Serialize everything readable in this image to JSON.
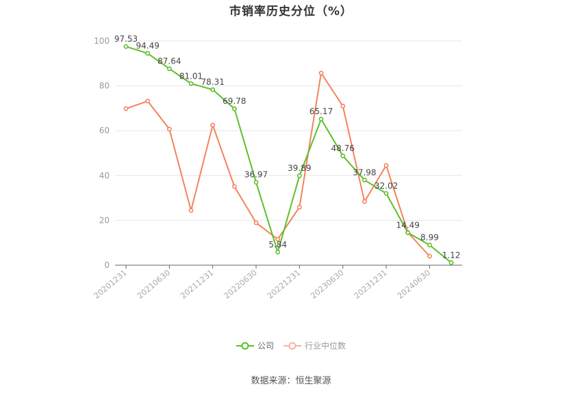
{
  "title": "市销率历史分位（%）",
  "source": "数据来源：恒生聚源",
  "legend": [
    {
      "label": "公司",
      "color": "#5cbf2a"
    },
    {
      "label": "行业中位数",
      "color": "#f4825a"
    }
  ],
  "chart_data": {
    "type": "line",
    "title": "市销率历史分位（%）",
    "xlabel": "",
    "ylabel": "",
    "ylim": [
      0,
      100
    ],
    "yticks": [
      0,
      20,
      40,
      60,
      80,
      100
    ],
    "grid": true,
    "legend_position": "bottom",
    "x": [
      "20201231",
      "20210331",
      "20210630",
      "20210930",
      "20211231",
      "20220331",
      "20220630",
      "20220930",
      "20221231",
      "20230331",
      "20230630",
      "20230930",
      "20231231",
      "20240331",
      "20240630",
      "20240930"
    ],
    "xtick_labels": [
      "20201231",
      "20210630",
      "20211231",
      "20220630",
      "20221231",
      "20230630",
      "20231231",
      "20240630"
    ],
    "series": [
      {
        "name": "公司",
        "color": "#5cbf2a",
        "values": [
          97.53,
          94.49,
          87.64,
          81.01,
          78.31,
          69.78,
          36.97,
          5.84,
          39.89,
          65.17,
          48.76,
          37.98,
          32.02,
          14.49,
          8.99,
          1.12
        ],
        "show_labels": true
      },
      {
        "name": "行业中位数",
        "color": "#f4825a",
        "values": [
          69.8,
          73.2,
          60.7,
          24.4,
          62.5,
          35.1,
          18.9,
          11.6,
          25.9,
          85.7,
          71.0,
          28.4,
          44.5,
          14.6,
          4.0,
          null
        ],
        "show_labels": false
      }
    ]
  }
}
